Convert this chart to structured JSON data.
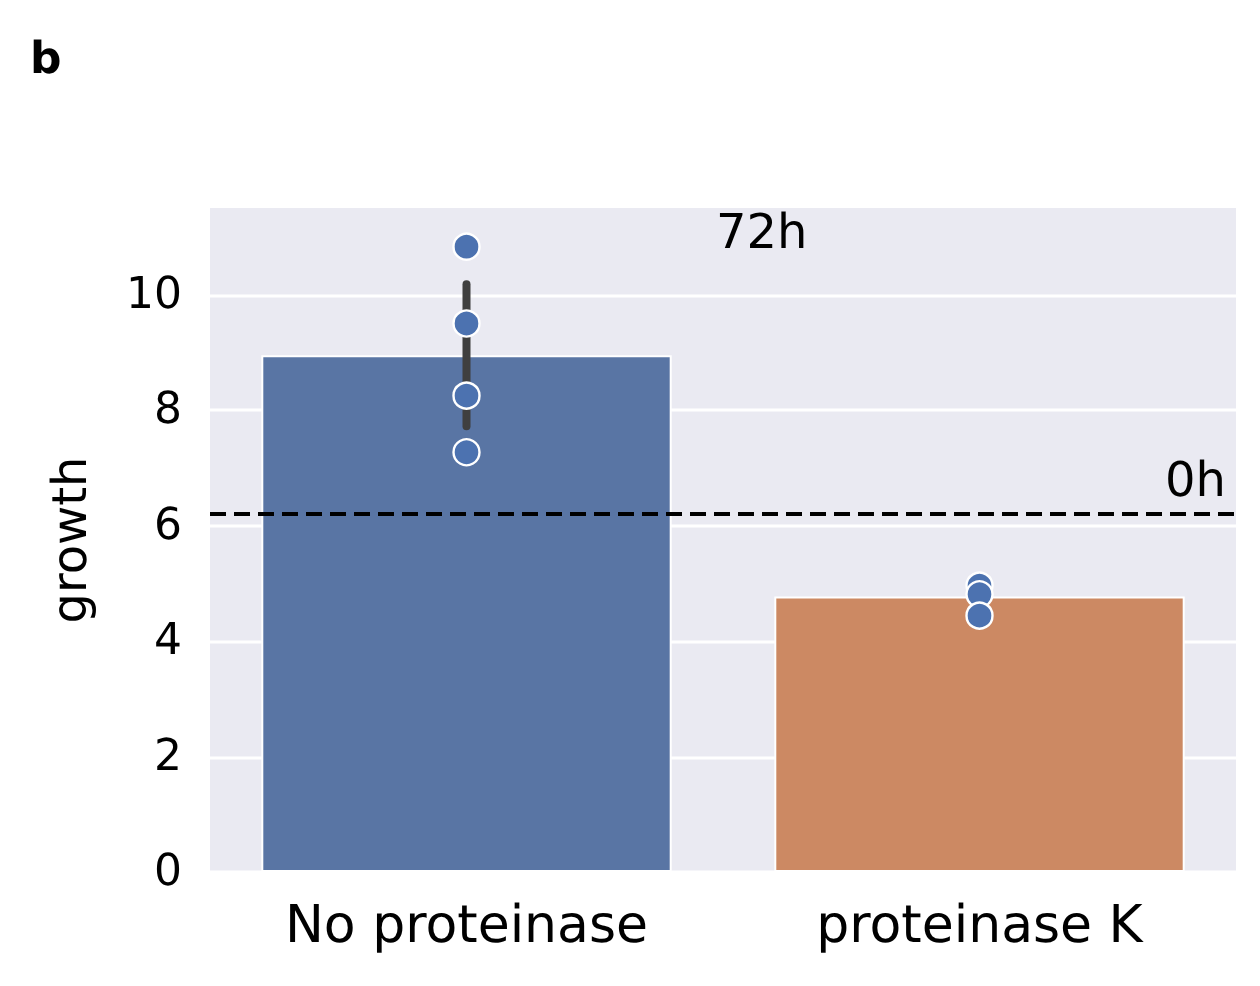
{
  "chart_data": {
    "type": "bar",
    "title": "b",
    "ylabel": "growth",
    "categories": [
      "No proteinase",
      "proteinase K"
    ],
    "values": [
      8.95,
      4.77
    ],
    "colors": [
      "#5975a4",
      "#cc8963"
    ],
    "errors": [
      [
        7.72,
        10.18
      ],
      null
    ],
    "series": [
      {
        "type": "scatter",
        "x": [
          "No proteinase",
          "No proteinase",
          "No proteinase",
          "No proteinase",
          "proteinase K",
          "proteinase K",
          "proteinase K"
        ],
        "values": [
          10.83,
          9.5,
          8.25,
          7.27,
          4.96,
          4.81,
          4.44
        ],
        "color": "#4c72b0"
      }
    ],
    "ylim": [
      0,
      11.5
    ],
    "yticks": [
      0,
      2,
      4,
      6,
      8,
      10
    ],
    "grid": "y",
    "marker": "circle",
    "ref_lines": [
      {
        "axis": "y",
        "value": 6.2,
        "label": "0h",
        "color": "#000000",
        "line_style": "dashed"
      }
    ],
    "annotations": [
      "72h"
    ]
  }
}
